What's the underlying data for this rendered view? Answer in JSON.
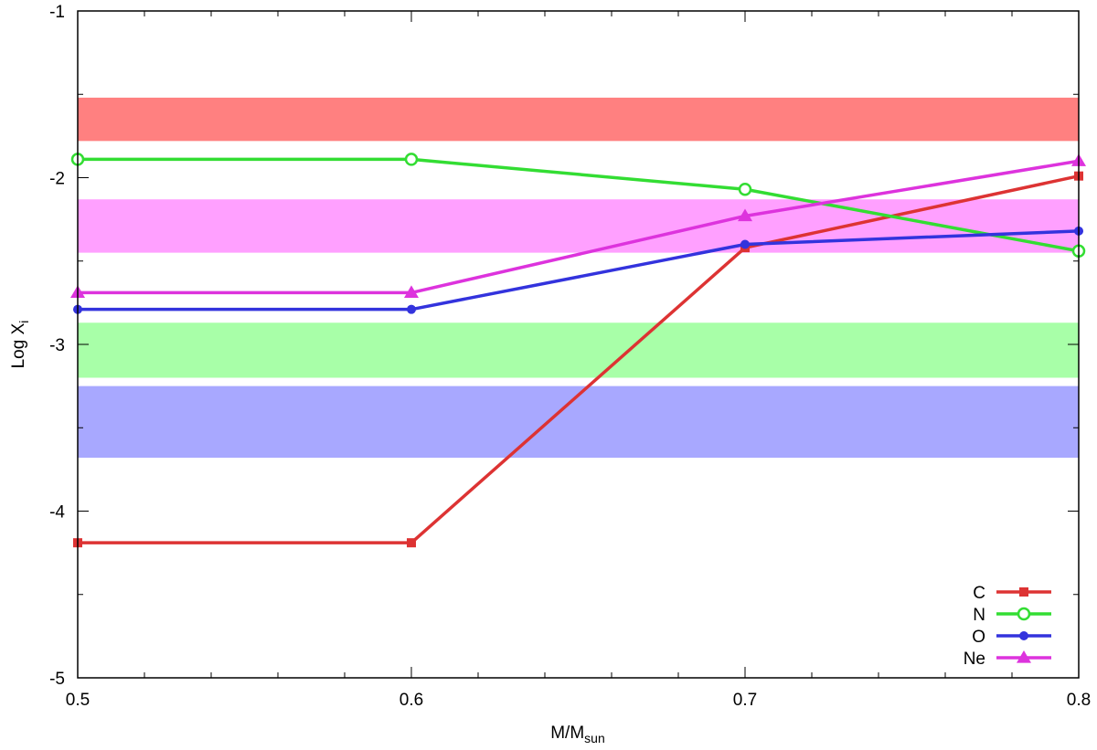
{
  "chart_data": {
    "type": "line",
    "xlabel": {
      "main": "M/M",
      "sub": "sun"
    },
    "ylabel": {
      "main": "Log X",
      "sub": "i"
    },
    "xlim": [
      0.5,
      0.8
    ],
    "ylim": [
      -5,
      -1
    ],
    "xticks": [
      {
        "value": 0.5,
        "label": "0.5"
      },
      {
        "value": 0.6,
        "label": "0.6"
      },
      {
        "value": 0.7,
        "label": "0.7"
      },
      {
        "value": 0.8,
        "label": "0.8"
      }
    ],
    "yticks": [
      {
        "value": -1,
        "label": "-1"
      },
      {
        "value": -2,
        "label": "-2"
      },
      {
        "value": -3,
        "label": "-3"
      },
      {
        "value": -4,
        "label": "-4"
      },
      {
        "value": -5,
        "label": "-5"
      }
    ],
    "x_minor_step": 0.02,
    "y_minor_step": 0.5,
    "grid": false,
    "legend_position": "bottom-right",
    "bands": [
      {
        "color": "#ff8080",
        "y": [
          -1.78,
          -1.52
        ]
      },
      {
        "color": "#ffa0ff",
        "y": [
          -2.45,
          -2.13
        ]
      },
      {
        "color": "#a8ffa8",
        "y": [
          -3.2,
          -2.87
        ]
      },
      {
        "color": "#a8a8ff",
        "y": [
          -3.68,
          -3.25
        ]
      }
    ],
    "series": [
      {
        "name": "C",
        "color": "#dd3333",
        "marker": "square",
        "x": [
          0.5,
          0.6,
          0.7,
          0.8
        ],
        "y": [
          -4.19,
          -4.19,
          -2.42,
          -1.99
        ]
      },
      {
        "name": "N",
        "color": "#33dd33",
        "marker": "circle-open",
        "x": [
          0.5,
          0.6,
          0.7,
          0.8
        ],
        "y": [
          -1.89,
          -1.89,
          -2.07,
          -2.44
        ]
      },
      {
        "name": "O",
        "color": "#3333dd",
        "marker": "circle",
        "x": [
          0.5,
          0.6,
          0.7,
          0.8
        ],
        "y": [
          -2.79,
          -2.79,
          -2.4,
          -2.32
        ]
      },
      {
        "name": "Ne",
        "color": "#dd33dd",
        "marker": "triangle",
        "x": [
          0.5,
          0.6,
          0.7,
          0.8
        ],
        "y": [
          -2.69,
          -2.69,
          -2.23,
          -1.9
        ]
      }
    ]
  }
}
